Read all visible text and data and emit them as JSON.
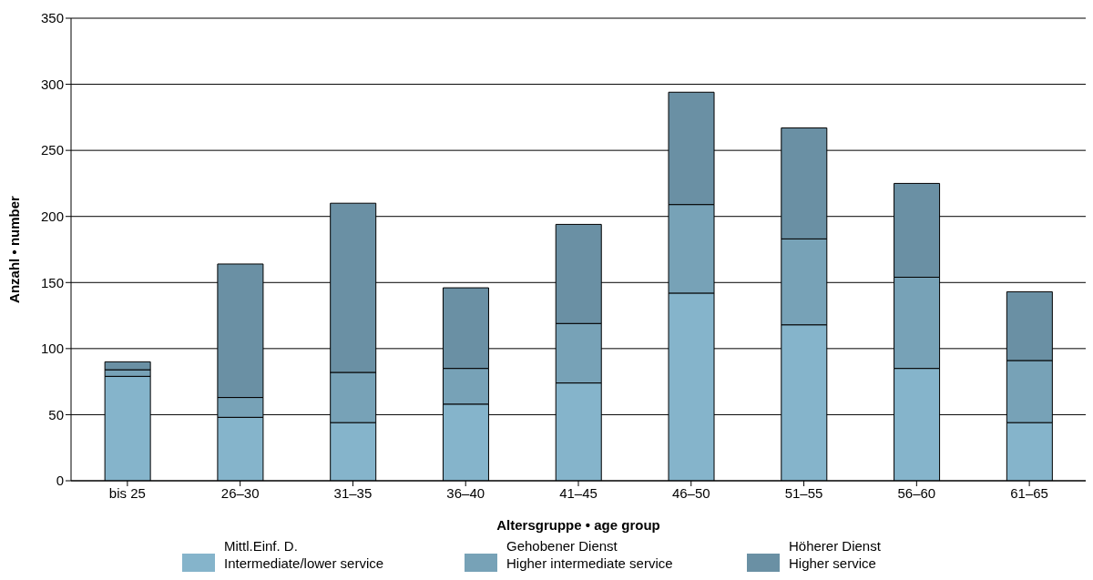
{
  "chart_data": {
    "type": "bar",
    "stacked": true,
    "xlabel": "Altersgruppe • age group",
    "ylabel": "Anzahl • number",
    "categories": [
      "bis 25",
      "26–30",
      "31–35",
      "36–40",
      "41–45",
      "46–50",
      "51–55",
      "56–60",
      "61–65"
    ],
    "series": [
      {
        "name": "Mittl.Einf. D.\nIntermediate/lower service",
        "color": "#85b4cb",
        "values": [
          79,
          48,
          44,
          58,
          74,
          142,
          118,
          85,
          44
        ]
      },
      {
        "name": "Gehobener Dienst\nHigher intermediate service",
        "color": "#77a2b7",
        "values": [
          5,
          15,
          38,
          27,
          45,
          67,
          65,
          69,
          47
        ]
      },
      {
        "name": "Höherer Dienst\nHigher service",
        "color": "#6a90a4",
        "values": [
          6,
          101,
          128,
          61,
          75,
          85,
          84,
          71,
          52
        ]
      }
    ],
    "ylim": [
      0,
      350
    ],
    "yticks": [
      0,
      50,
      100,
      150,
      200,
      250,
      300,
      350
    ],
    "grid": "y",
    "legend": "bottom"
  }
}
